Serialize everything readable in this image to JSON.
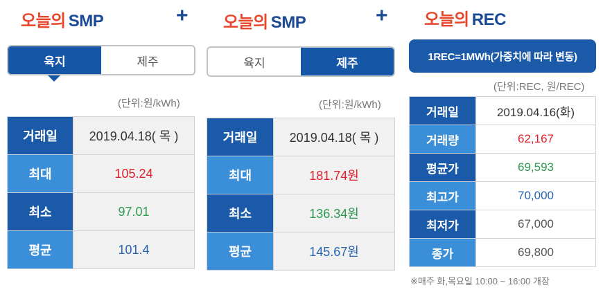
{
  "panels": [
    {
      "title_ko": "오늘의",
      "title_en": "SMP",
      "tabs": [
        "육지",
        "제주"
      ],
      "active_tab": 0,
      "unit": "(단위:원/kWh)",
      "rows": [
        {
          "label": "거래일",
          "value": "2019.04.18( 목 )"
        },
        {
          "label": "최대",
          "value": "105.24"
        },
        {
          "label": "최소",
          "value": "97.01"
        },
        {
          "label": "평균",
          "value": "101.4"
        }
      ]
    },
    {
      "title_ko": "오늘의",
      "title_en": "SMP",
      "tabs": [
        "육지",
        "제주"
      ],
      "active_tab": 1,
      "unit": "(단위:원/kWh)",
      "rows": [
        {
          "label": "거래일",
          "value": "2019.04.18( 목 )"
        },
        {
          "label": "최대",
          "value": "181.74원"
        },
        {
          "label": "최소",
          "value": "136.34원"
        },
        {
          "label": "평균",
          "value": "145.67원"
        }
      ]
    },
    {
      "title_ko": "오늘의",
      "title_en": "REC",
      "button": "1REC=1MWh(가중치에 따라 변동)",
      "unit": "(단위:REC, 원/REC)",
      "rows": [
        {
          "label": "거래일",
          "value": "2019.04.16(화)"
        },
        {
          "label": "거래량",
          "value": "62,167"
        },
        {
          "label": "평균가",
          "value": "69,593"
        },
        {
          "label": "최고가",
          "value": "70,000"
        },
        {
          "label": "최저가",
          "value": "67,000"
        },
        {
          "label": "종가",
          "value": "69,800"
        }
      ],
      "note": "※매주 화,목요일 10:00 ~ 16:00 개장"
    }
  ],
  "plus_symbol": "+",
  "colors": {
    "title_accent": "#e8462a",
    "brand_blue": "#1a5aa8",
    "light_blue": "#3b8fd8",
    "max_red": "#e01f2d",
    "min_green": "#2b9a4f",
    "avg_blue": "#2765b0"
  }
}
